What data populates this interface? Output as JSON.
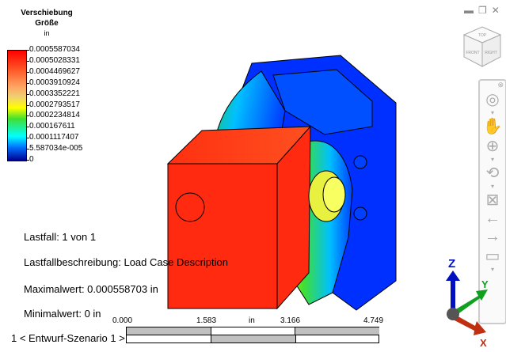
{
  "legend": {
    "title": "Verschiebung",
    "subtitle": "Größe",
    "unit": "in",
    "values": [
      "0.0005587034",
      "0.0005028331",
      "0.0004469627",
      "0.0003910924",
      "0.0003352221",
      "0.0002793517",
      "0.0002234814",
      "0.000167611",
      "0.0001117407",
      "5.587034e-005",
      "0"
    ],
    "colors": [
      "#ff0000",
      "#ff6030",
      "#ff9a50",
      "#ffb870",
      "#ffff00",
      "#40e030",
      "#20c850",
      "#00ffff",
      "#0090ff",
      "#0030ff",
      "#000090"
    ]
  },
  "info": {
    "load_case": "Lastfall:  1 von 1",
    "load_case_desc": "Lastfallbeschreibung: Load Case Description",
    "max_value": "Maximalwert:  0.000558703 in",
    "min_value": "Minimalwert:  0 in"
  },
  "scale": {
    "ticks": [
      "0.000",
      "1.583",
      "3.166",
      "4.749"
    ],
    "unit": "in"
  },
  "scenario": {
    "label": "1 < Entwurf-Szenario 1 >"
  },
  "window": {
    "icons": [
      "minimize-icon",
      "restore-icon",
      "close-icon"
    ]
  },
  "viewcube": {
    "faces": [
      "TOP",
      "FRONT",
      "RIGHT"
    ]
  },
  "navbar": {
    "icons": [
      "steering-wheel-icon",
      "pan-icon",
      "zoom-icon",
      "orbit-icon",
      "center-icon",
      "previous-view-icon",
      "next-view-icon",
      "look-at-icon"
    ]
  },
  "triad": {
    "axes": [
      "Z",
      "Y",
      "X"
    ],
    "colors": {
      "x": "#c03010",
      "y": "#10a020",
      "z": "#0010c0"
    }
  }
}
